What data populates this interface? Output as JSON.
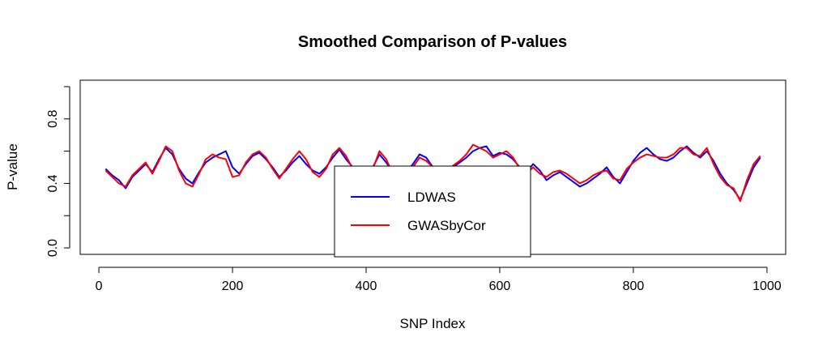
{
  "chart_data": {
    "type": "line",
    "title": "Smoothed Comparison of P-values",
    "xlabel": "SNP Index",
    "ylabel": "P-value",
    "xlim": [
      -28,
      1028
    ],
    "ylim": [
      -0.04,
      1.04
    ],
    "xticks": [
      "0",
      "200",
      "400",
      "600",
      "800",
      "1000"
    ],
    "xtick_values": [
      0,
      200,
      400,
      600,
      800,
      1000
    ],
    "yticks": [
      "0.0",
      "0.4",
      "0.8"
    ],
    "ytick_values": [
      0.0,
      0.4,
      0.8
    ],
    "ytick_marks": [
      0.0,
      0.2,
      0.4,
      0.6,
      0.8,
      1.0
    ],
    "legend_position": "bottom-center",
    "grid": false,
    "series": [
      {
        "name": "LDWAS",
        "color": "#0000ff",
        "x": [
          10,
          20,
          30,
          40,
          50,
          60,
          70,
          80,
          90,
          100,
          110,
          120,
          130,
          140,
          150,
          160,
          170,
          180,
          190,
          200,
          210,
          220,
          230,
          240,
          250,
          260,
          270,
          280,
          290,
          300,
          310,
          320,
          330,
          340,
          350,
          360,
          370,
          380,
          390,
          400,
          410,
          420,
          430,
          440,
          450,
          460,
          470,
          480,
          490,
          500,
          510,
          520,
          530,
          540,
          550,
          560,
          570,
          580,
          590,
          600,
          610,
          620,
          630,
          640,
          650,
          660,
          670,
          680,
          690,
          700,
          710,
          720,
          730,
          740,
          750,
          760,
          770,
          780,
          790,
          800,
          810,
          820,
          830,
          840,
          850,
          860,
          870,
          880,
          890,
          900,
          910,
          920,
          930,
          940,
          950,
          960,
          970,
          980,
          990
        ],
        "values": [
          0.49,
          0.45,
          0.42,
          0.37,
          0.44,
          0.48,
          0.52,
          0.47,
          0.55,
          0.62,
          0.58,
          0.49,
          0.43,
          0.4,
          0.47,
          0.53,
          0.56,
          0.58,
          0.6,
          0.5,
          0.46,
          0.52,
          0.57,
          0.59,
          0.55,
          0.5,
          0.44,
          0.48,
          0.53,
          0.57,
          0.52,
          0.48,
          0.46,
          0.5,
          0.56,
          0.61,
          0.55,
          0.5,
          0.46,
          0.45,
          0.5,
          0.58,
          0.53,
          0.47,
          0.44,
          0.47,
          0.52,
          0.58,
          0.56,
          0.5,
          0.45,
          0.47,
          0.5,
          0.53,
          0.56,
          0.6,
          0.62,
          0.63,
          0.57,
          0.59,
          0.58,
          0.55,
          0.5,
          0.47,
          0.52,
          0.48,
          0.42,
          0.45,
          0.47,
          0.44,
          0.41,
          0.38,
          0.4,
          0.43,
          0.46,
          0.5,
          0.44,
          0.4,
          0.47,
          0.54,
          0.59,
          0.62,
          0.58,
          0.55,
          0.54,
          0.56,
          0.6,
          0.63,
          0.59,
          0.56,
          0.6,
          0.54,
          0.46,
          0.4,
          0.36,
          0.3,
          0.4,
          0.5,
          0.56
        ]
      },
      {
        "name": "GWASbyCor",
        "color": "#ff0000",
        "x": [
          10,
          20,
          30,
          40,
          50,
          60,
          70,
          80,
          90,
          100,
          110,
          120,
          130,
          140,
          150,
          160,
          170,
          180,
          190,
          200,
          210,
          220,
          230,
          240,
          250,
          260,
          270,
          280,
          290,
          300,
          310,
          320,
          330,
          340,
          350,
          360,
          370,
          380,
          390,
          400,
          410,
          420,
          430,
          440,
          450,
          460,
          470,
          480,
          490,
          500,
          510,
          520,
          530,
          540,
          550,
          560,
          570,
          580,
          590,
          600,
          610,
          620,
          630,
          640,
          650,
          660,
          670,
          680,
          690,
          700,
          710,
          720,
          730,
          740,
          750,
          760,
          770,
          780,
          790,
          800,
          810,
          820,
          830,
          840,
          850,
          860,
          870,
          880,
          890,
          900,
          910,
          920,
          930,
          940,
          950,
          960,
          970,
          980,
          990
        ],
        "values": [
          0.48,
          0.44,
          0.4,
          0.38,
          0.45,
          0.49,
          0.53,
          0.46,
          0.54,
          0.63,
          0.6,
          0.48,
          0.4,
          0.38,
          0.46,
          0.55,
          0.58,
          0.56,
          0.55,
          0.44,
          0.45,
          0.53,
          0.58,
          0.6,
          0.56,
          0.49,
          0.43,
          0.49,
          0.55,
          0.6,
          0.55,
          0.47,
          0.44,
          0.49,
          0.58,
          0.62,
          0.57,
          0.49,
          0.45,
          0.44,
          0.49,
          0.6,
          0.55,
          0.46,
          0.43,
          0.46,
          0.5,
          0.56,
          0.54,
          0.5,
          0.47,
          0.48,
          0.51,
          0.54,
          0.58,
          0.64,
          0.62,
          0.6,
          0.56,
          0.58,
          0.6,
          0.56,
          0.49,
          0.46,
          0.5,
          0.46,
          0.44,
          0.47,
          0.48,
          0.46,
          0.43,
          0.4,
          0.42,
          0.45,
          0.47,
          0.48,
          0.43,
          0.42,
          0.49,
          0.53,
          0.56,
          0.58,
          0.57,
          0.56,
          0.56,
          0.58,
          0.62,
          0.62,
          0.58,
          0.57,
          0.62,
          0.52,
          0.44,
          0.39,
          0.37,
          0.29,
          0.42,
          0.52,
          0.57
        ]
      }
    ]
  }
}
